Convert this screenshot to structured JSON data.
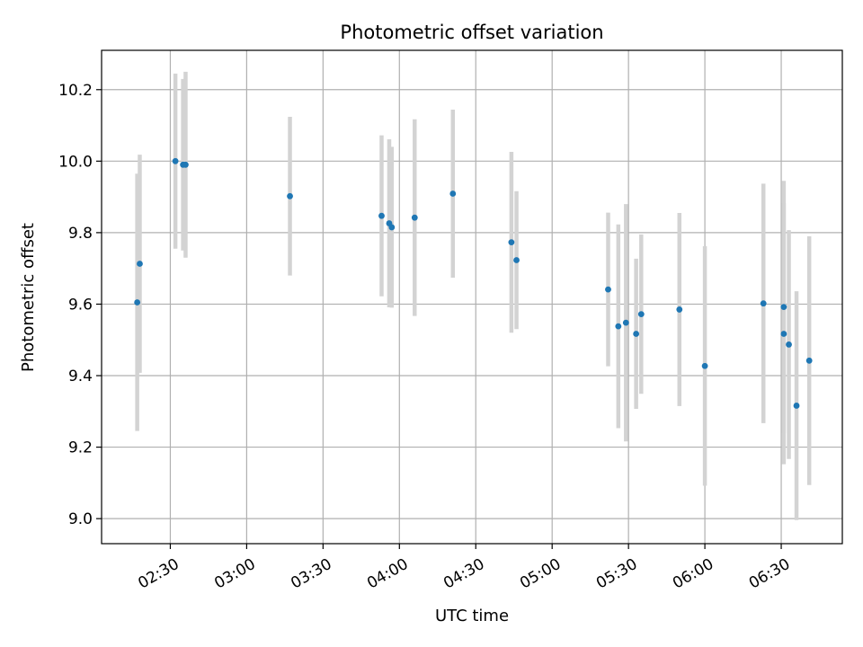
{
  "chart_data": {
    "type": "scatter",
    "title": "Photometric offset variation",
    "xlabel": "UTC time",
    "ylabel": "Photometric offset",
    "grid": true,
    "x_ticks": [
      "02:30",
      "03:00",
      "03:30",
      "04:00",
      "04:30",
      "05:00",
      "05:30",
      "06:00",
      "06:30"
    ],
    "y_ticks": [
      "9.0",
      "9.2",
      "9.4",
      "9.6",
      "9.8",
      "10.0",
      "10.2"
    ],
    "xlim": [
      "02:03",
      "06:54"
    ],
    "ylim": [
      8.93,
      10.31
    ],
    "colors": {
      "point": "#1f77b4",
      "errorbar": "#d3d3d3",
      "grid": "#b0b0b0"
    },
    "points": [
      {
        "x": "02:17",
        "y": 9.605,
        "yerr": 0.36
      },
      {
        "x": "02:18",
        "y": 9.713,
        "yerr": 0.305
      },
      {
        "x": "02:32",
        "y": 10.0,
        "yerr": 0.245
      },
      {
        "x": "02:35",
        "y": 9.99,
        "yerr": 0.24
      },
      {
        "x": "02:36",
        "y": 9.99,
        "yerr": 0.26
      },
      {
        "x": "03:17",
        "y": 9.902,
        "yerr": 0.222
      },
      {
        "x": "03:53",
        "y": 9.847,
        "yerr": 0.225
      },
      {
        "x": "03:56",
        "y": 9.826,
        "yerr": 0.235
      },
      {
        "x": "03:57",
        "y": 9.815,
        "yerr": 0.225
      },
      {
        "x": "04:06",
        "y": 9.842,
        "yerr": 0.275
      },
      {
        "x": "04:21",
        "y": 9.909,
        "yerr": 0.235
      },
      {
        "x": "04:44",
        "y": 9.773,
        "yerr": 0.253
      },
      {
        "x": "04:46",
        "y": 9.723,
        "yerr": 0.193
      },
      {
        "x": "05:22",
        "y": 9.641,
        "yerr": 0.215
      },
      {
        "x": "05:26",
        "y": 9.538,
        "yerr": 0.285
      },
      {
        "x": "05:29",
        "y": 9.548,
        "yerr": 0.332
      },
      {
        "x": "05:33",
        "y": 9.517,
        "yerr": 0.21
      },
      {
        "x": "05:35",
        "y": 9.572,
        "yerr": 0.223
      },
      {
        "x": "05:50",
        "y": 9.585,
        "yerr": 0.27
      },
      {
        "x": "06:00",
        "y": 9.427,
        "yerr": 0.335
      },
      {
        "x": "06:23",
        "y": 9.602,
        "yerr": 0.335
      },
      {
        "x": "06:31",
        "y": 9.592,
        "yerr": 0.353
      },
      {
        "x": "06:31",
        "y": 9.517,
        "yerr": 0.365
      },
      {
        "x": "06:33",
        "y": 9.487,
        "yerr": 0.32
      },
      {
        "x": "06:36",
        "y": 9.316,
        "yerr": 0.32
      },
      {
        "x": "06:41",
        "y": 9.442,
        "yerr": 0.348
      }
    ]
  }
}
